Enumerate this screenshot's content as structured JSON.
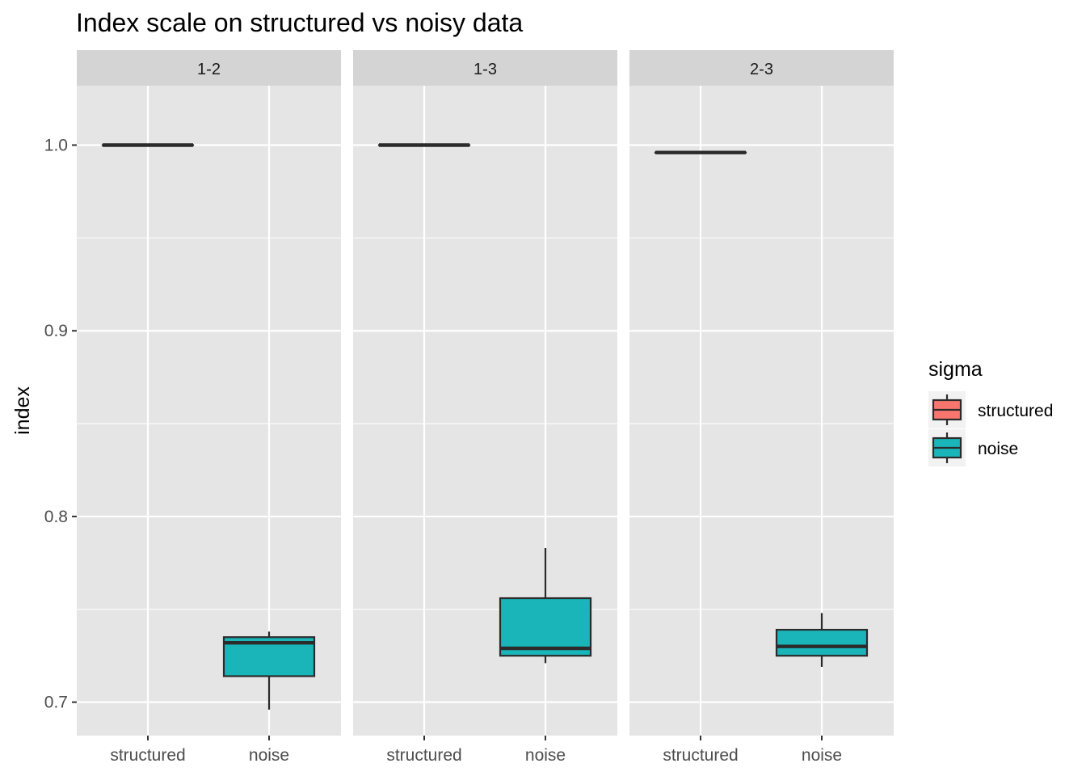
{
  "chart_data": {
    "type": "box",
    "title": "Index scale on structured vs noisy data",
    "xlabel": "",
    "ylabel": "index",
    "ylim": [
      0.682,
      1.032
    ],
    "yticks": [
      0.7,
      0.8,
      0.9,
      1.0
    ],
    "ytick_labels": [
      "0.7",
      "0.8",
      "0.9",
      "1.0"
    ],
    "categories": [
      "structured",
      "noise"
    ],
    "facets": [
      {
        "label": "1-2",
        "boxes": [
          {
            "category": "structured",
            "whisker_low": 1.0,
            "q1": 1.0,
            "median": 1.0,
            "q3": 1.0,
            "whisker_high": 1.0
          },
          {
            "category": "noise",
            "whisker_low": 0.696,
            "q1": 0.714,
            "median": 0.732,
            "q3": 0.735,
            "whisker_high": 0.738
          }
        ]
      },
      {
        "label": "1-3",
        "boxes": [
          {
            "category": "structured",
            "whisker_low": 1.0,
            "q1": 1.0,
            "median": 1.0,
            "q3": 1.0,
            "whisker_high": 1.0
          },
          {
            "category": "noise",
            "whisker_low": 0.721,
            "q1": 0.725,
            "median": 0.729,
            "q3": 0.756,
            "whisker_high": 0.783
          }
        ]
      },
      {
        "label": "2-3",
        "boxes": [
          {
            "category": "structured",
            "whisker_low": 0.996,
            "q1": 0.996,
            "median": 0.996,
            "q3": 0.996,
            "whisker_high": 0.996
          },
          {
            "category": "noise",
            "whisker_low": 0.719,
            "q1": 0.725,
            "median": 0.73,
            "q3": 0.739,
            "whisker_high": 0.748
          }
        ]
      }
    ],
    "legend": {
      "title": "sigma",
      "placement": "right",
      "entries": [
        {
          "label": "structured",
          "color": "#F8766D"
        },
        {
          "label": "noise",
          "color": "#19B5B9"
        }
      ]
    },
    "colors": {
      "structured": "#F8766D",
      "noise": "#19B5B9",
      "panel_background": "#E5E5E5",
      "strip_background": "#D4D4D4",
      "grid": "#FFFFFF",
      "box_outline": "#2B2B2B"
    },
    "grid": true
  }
}
